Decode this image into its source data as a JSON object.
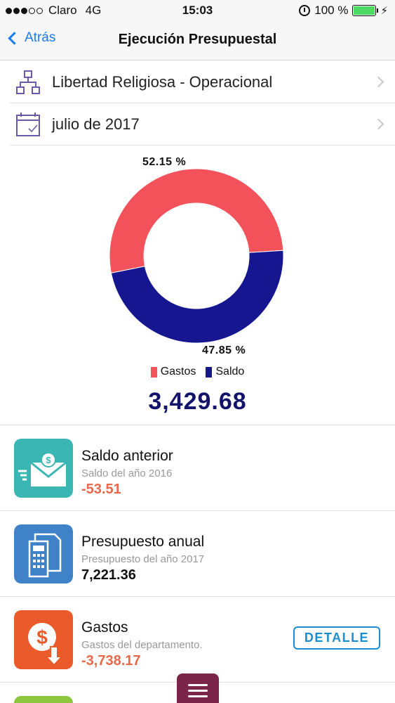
{
  "status_bar": {
    "carrier": "Claro",
    "network": "4G",
    "time": "15:03",
    "battery": "100 %",
    "battery_level": 1.0
  },
  "nav": {
    "back_label": "Atrás",
    "title": "Ejecución Presupuestal"
  },
  "selectors": {
    "department": "Libertad Religiosa - Operacional",
    "period": "julio de 2017"
  },
  "chart_data": {
    "type": "pie",
    "categories": [
      "Gastos",
      "Saldo"
    ],
    "values": [
      52.15,
      47.85
    ],
    "value_labels": [
      "52.15 %",
      "47.85 %"
    ],
    "colors": [
      "#f4525a",
      "#161790"
    ],
    "legend": "bottom-center"
  },
  "total": "3,429.68",
  "items": [
    {
      "title": "Saldo anterior",
      "subtitle": "Saldo del año 2016",
      "value": "-53.51",
      "value_color": "#e8694a",
      "icon": "money-envelope-icon",
      "icon_color": "#3ab7b4"
    },
    {
      "title": "Presupuesto anual",
      "subtitle": "Presupuesto del año 2017",
      "value": "7,221.36",
      "value_color": "#111111",
      "icon": "budget-document-icon",
      "icon_color": "#3f82c8"
    },
    {
      "title": "Gastos",
      "subtitle": "Gastos del departamento.",
      "value": "-3,738.17",
      "value_color": "#e8694a",
      "icon": "expense-dollar-icon",
      "icon_color": "#ea5a2a",
      "action_label": "DETALLE"
    }
  ],
  "menu_icon": "hamburger-menu-icon"
}
